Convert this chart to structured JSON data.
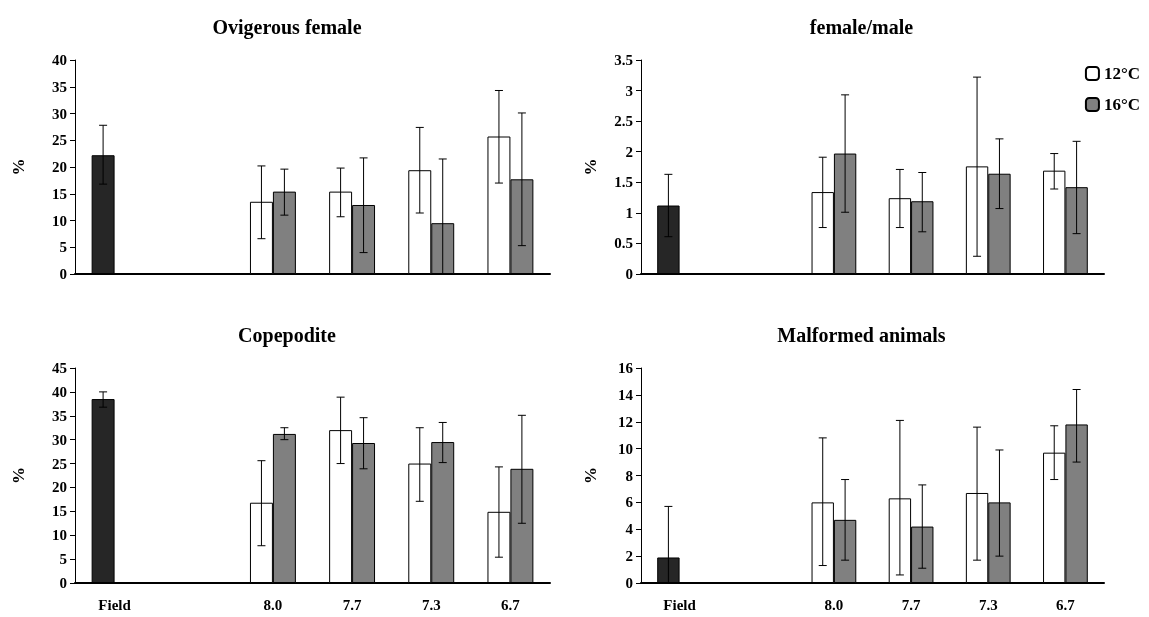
{
  "chart_data": [
    {
      "type": "bar",
      "title": "Ovigerous female",
      "ylabel": "%",
      "categories": [
        null,
        null,
        null,
        null,
        null,
        null
      ],
      "ylim": [
        0,
        40
      ],
      "yticks": [
        0,
        5,
        10,
        15,
        20,
        25,
        30,
        35,
        40
      ],
      "grid": false,
      "legend": false,
      "tick_labels": "y",
      "series": [
        {
          "color": "#262626",
          "values": [
            22.2,
            null,
            null,
            null,
            null,
            null
          ],
          "errors": [
            [
              16.8,
              27.8
            ],
            null,
            null,
            null,
            null,
            null
          ]
        },
        {
          "color": "#ffffff",
          "values": [
            null,
            null,
            13.5,
            15.4,
            19.4,
            25.7
          ],
          "errors": [
            null,
            null,
            [
              6.6,
              20.2
            ],
            [
              10.7,
              19.8
            ],
            [
              11.4,
              27.4
            ],
            [
              17.0,
              34.3
            ]
          ]
        },
        {
          "color": "#808080",
          "values": [
            null,
            null,
            15.4,
            12.9,
            9.5,
            17.7
          ],
          "errors": [
            null,
            null,
            [
              11.0,
              19.6
            ],
            [
              4.0,
              21.7
            ],
            [
              0,
              21.5
            ],
            [
              5.3,
              30.1
            ]
          ]
        }
      ]
    },
    {
      "type": "bar",
      "title": "female/male",
      "ylabel": "%",
      "categories": [
        null,
        null,
        null,
        null,
        null,
        null
      ],
      "ylim": [
        0,
        3.5
      ],
      "yticks": [
        0,
        0.5,
        1,
        1.5,
        2,
        2.5,
        3,
        3.5
      ],
      "grid": false,
      "legend": "top right",
      "tick_labels": "y",
      "series": [
        {
          "color": "#262626",
          "values": [
            1.12,
            null,
            null,
            null,
            null,
            null
          ],
          "errors": [
            [
              0.61,
              1.63
            ],
            null,
            null,
            null,
            null,
            null
          ]
        },
        {
          "name": "12°C",
          "color": "#ffffff",
          "values": [
            null,
            null,
            1.34,
            1.24,
            1.76,
            1.69
          ],
          "errors": [
            null,
            null,
            [
              0.76,
              1.91
            ],
            [
              0.76,
              1.71
            ],
            [
              0.29,
              3.22
            ],
            [
              1.39,
              1.97
            ]
          ]
        },
        {
          "name": "16°C",
          "color": "#808080",
          "values": [
            null,
            null,
            1.97,
            1.19,
            1.64,
            1.42
          ],
          "errors": [
            null,
            null,
            [
              1.01,
              2.93
            ],
            [
              0.69,
              1.66
            ],
            [
              1.07,
              2.21
            ],
            [
              0.66,
              2.17
            ]
          ]
        }
      ]
    },
    {
      "type": "bar",
      "title": "Copepodite",
      "ylabel": "%",
      "categories": [
        "Field",
        null,
        "8.0",
        "7.7",
        "7.3",
        "6.7"
      ],
      "ylim": [
        0,
        45
      ],
      "yticks": [
        0,
        5,
        10,
        15,
        20,
        25,
        30,
        35,
        40,
        45
      ],
      "grid": false,
      "legend": false,
      "series": [
        {
          "color": "#262626",
          "values": [
            38.5,
            null,
            null,
            null,
            null,
            null
          ],
          "errors": [
            [
              36.8,
              40.0
            ],
            null,
            null,
            null,
            null,
            null
          ]
        },
        {
          "color": "#ffffff",
          "values": [
            null,
            null,
            16.8,
            32.0,
            25.0,
            14.9
          ],
          "errors": [
            null,
            null,
            [
              7.8,
              25.6
            ],
            [
              25.0,
              38.9
            ],
            [
              17.1,
              32.5
            ],
            [
              5.4,
              24.3
            ]
          ]
        },
        {
          "color": "#808080",
          "values": [
            null,
            null,
            31.2,
            29.3,
            29.5,
            23.9
          ],
          "errors": [
            null,
            null,
            [
              30.0,
              32.5
            ],
            [
              23.9,
              34.6
            ],
            [
              25.2,
              33.6
            ],
            [
              12.5,
              35.1
            ]
          ]
        }
      ]
    },
    {
      "type": "bar",
      "title": "Malformed animals",
      "ylabel": "%",
      "categories": [
        "Field",
        null,
        "8.0",
        "7.7",
        "7.3",
        "6.7"
      ],
      "ylim": [
        0,
        16
      ],
      "yticks": [
        0,
        2,
        4,
        6,
        8,
        10,
        12,
        14,
        16
      ],
      "grid": false,
      "legend": false,
      "series": [
        {
          "color": "#262626",
          "values": [
            1.9,
            null,
            null,
            null,
            null,
            null
          ],
          "errors": [
            [
              0,
              5.7
            ],
            null,
            null,
            null,
            null,
            null
          ]
        },
        {
          "color": "#ffffff",
          "values": [
            null,
            null,
            6.0,
            6.3,
            6.7,
            9.7
          ],
          "errors": [
            null,
            null,
            [
              1.3,
              10.8
            ],
            [
              0.6,
              12.1
            ],
            [
              1.7,
              11.6
            ],
            [
              7.7,
              11.7
            ]
          ]
        },
        {
          "color": "#808080",
          "values": [
            null,
            null,
            4.7,
            4.2,
            6.0,
            11.8
          ],
          "errors": [
            null,
            null,
            [
              1.7,
              7.7
            ],
            [
              1.1,
              7.3
            ],
            [
              2.0,
              9.9
            ],
            [
              9.0,
              14.4
            ]
          ]
        }
      ]
    }
  ]
}
